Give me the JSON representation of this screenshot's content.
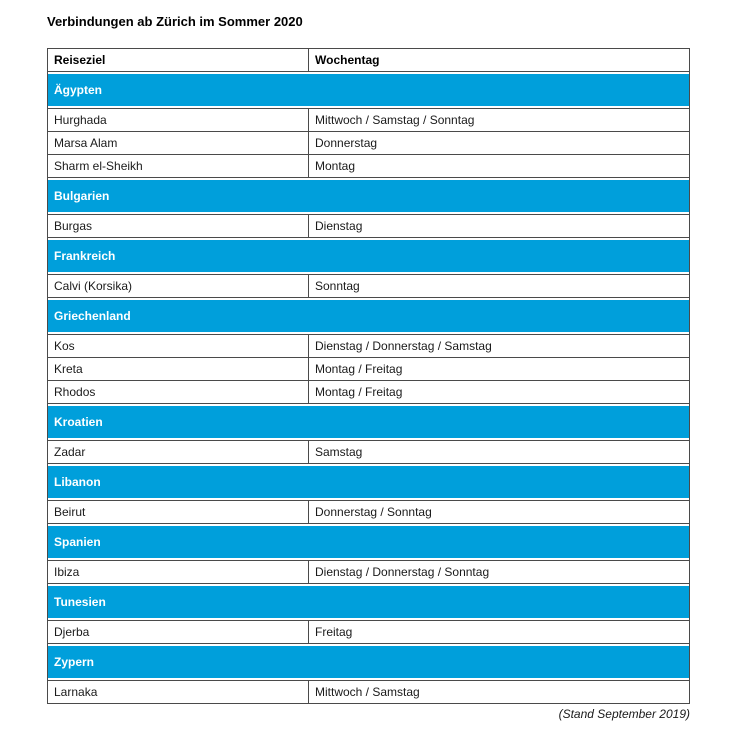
{
  "title": "Verbindungen ab Zürich im Sommer 2020",
  "table": {
    "columns": [
      "Reiseziel",
      "Wochentag"
    ],
    "sections": [
      {
        "country": "Ägypten",
        "rows": [
          {
            "destination": "Hurghada",
            "weekdays": "Mittwoch / Samstag / Sonntag"
          },
          {
            "destination": "Marsa Alam",
            "weekdays": "Donnerstag"
          },
          {
            "destination": "Sharm el-Sheikh",
            "weekdays": "Montag"
          }
        ]
      },
      {
        "country": "Bulgarien",
        "rows": [
          {
            "destination": "Burgas",
            "weekdays": "Dienstag"
          }
        ]
      },
      {
        "country": "Frankreich",
        "rows": [
          {
            "destination": "Calvi (Korsika)",
            "weekdays": "Sonntag"
          }
        ]
      },
      {
        "country": "Griechenland",
        "rows": [
          {
            "destination": "Kos",
            "weekdays": "Dienstag / Donnerstag / Samstag"
          },
          {
            "destination": "Kreta",
            "weekdays": "Montag / Freitag"
          },
          {
            "destination": "Rhodos",
            "weekdays": "Montag / Freitag"
          }
        ]
      },
      {
        "country": "Kroatien",
        "rows": [
          {
            "destination": "Zadar",
            "weekdays": "Samstag"
          }
        ]
      },
      {
        "country": "Libanon",
        "rows": [
          {
            "destination": "Beirut",
            "weekdays": "Donnerstag / Sonntag"
          }
        ]
      },
      {
        "country": "Spanien",
        "rows": [
          {
            "destination": "Ibiza",
            "weekdays": "Dienstag / Donnerstag / Sonntag"
          }
        ]
      },
      {
        "country": "Tunesien",
        "rows": [
          {
            "destination": "Djerba",
            "weekdays": "Freitag"
          }
        ]
      },
      {
        "country": "Zypern",
        "rows": [
          {
            "destination": "Larnaka",
            "weekdays": "Mittwoch / Samstag"
          }
        ]
      }
    ]
  },
  "footer": "(Stand September 2019)",
  "colors": {
    "accent_blue": "#009FDB",
    "border": "#4a4a4a",
    "band_text": "#ffffff"
  }
}
